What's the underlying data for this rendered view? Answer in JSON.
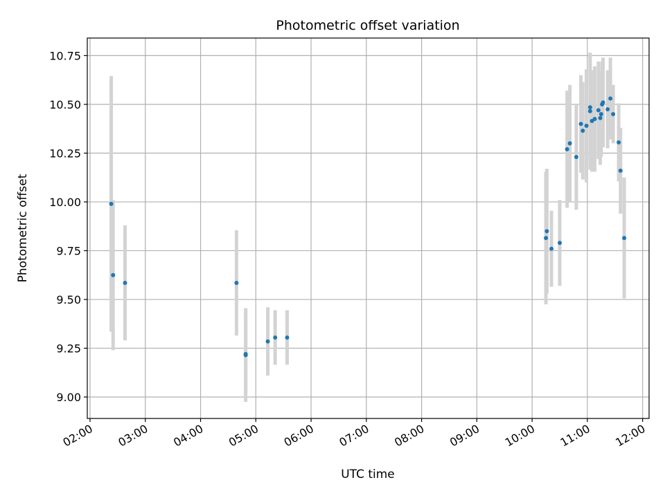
{
  "chart_data": {
    "type": "scatter",
    "title": "Photometric offset variation",
    "xlabel": "UTC time",
    "ylabel": "Photometric offset",
    "x_tick_labels": [
      "02:00",
      "03:00",
      "04:00",
      "05:00",
      "06:00",
      "07:00",
      "08:00",
      "09:00",
      "10:00",
      "11:00",
      "12:00"
    ],
    "y_tick_labels": [
      "9.00",
      "9.25",
      "9.50",
      "9.75",
      "10.00",
      "10.25",
      "10.50",
      "10.75"
    ],
    "xlim": [
      "01:57",
      "12:07"
    ],
    "ylim": [
      8.89,
      10.84
    ],
    "grid": true,
    "marker_color": "#1f77b4",
    "errorbar_color": "#d3d3d3",
    "series": [
      {
        "points": [
          {
            "x": "02:23",
            "y": 9.99,
            "err": 0.655
          },
          {
            "x": "02:25",
            "y": 9.625,
            "err": 0.385
          },
          {
            "x": "02:38",
            "y": 9.585,
            "err": 0.295
          },
          {
            "x": "04:39",
            "y": 9.585,
            "err": 0.27
          },
          {
            "x": "04:49",
            "y": 9.215,
            "err": 0.24
          },
          {
            "x": "04:49",
            "y": 9.22,
            "err": 0.2
          },
          {
            "x": "05:13",
            "y": 9.285,
            "err": 0.175
          },
          {
            "x": "05:21",
            "y": 9.305,
            "err": 0.14
          },
          {
            "x": "05:34",
            "y": 9.305,
            "err": 0.14
          },
          {
            "x": "10:15",
            "y": 9.815,
            "err": 0.34
          },
          {
            "x": "10:16",
            "y": 9.85,
            "err": 0.32
          },
          {
            "x": "10:21",
            "y": 9.76,
            "err": 0.195
          },
          {
            "x": "10:30",
            "y": 9.79,
            "err": 0.22
          },
          {
            "x": "10:38",
            "y": 10.27,
            "err": 0.3
          },
          {
            "x": "10:41",
            "y": 10.3,
            "err": 0.3
          },
          {
            "x": "10:48",
            "y": 10.23,
            "err": 0.27
          },
          {
            "x": "10:53",
            "y": 10.4,
            "err": 0.25
          },
          {
            "x": "10:55",
            "y": 10.365,
            "err": 0.25
          },
          {
            "x": "10:59",
            "y": 10.39,
            "err": 0.29
          },
          {
            "x": "11:03",
            "y": 10.465,
            "err": 0.3
          },
          {
            "x": "11:03",
            "y": 10.485,
            "err": 0.27
          },
          {
            "x": "11:05",
            "y": 10.415,
            "err": 0.26
          },
          {
            "x": "11:08",
            "y": 10.425,
            "err": 0.27
          },
          {
            "x": "11:12",
            "y": 10.47,
            "err": 0.25
          },
          {
            "x": "11:14",
            "y": 10.43,
            "err": 0.24
          },
          {
            "x": "11:15",
            "y": 10.45,
            "err": 0.22
          },
          {
            "x": "11:16",
            "y": 10.5,
            "err": 0.22
          },
          {
            "x": "11:17",
            "y": 10.51,
            "err": 0.23
          },
          {
            "x": "11:22",
            "y": 10.475,
            "err": 0.2
          },
          {
            "x": "11:25",
            "y": 10.53,
            "err": 0.21
          },
          {
            "x": "11:28",
            "y": 10.45,
            "err": 0.15
          },
          {
            "x": "11:34",
            "y": 10.305,
            "err": 0.2
          },
          {
            "x": "11:36",
            "y": 10.16,
            "err": 0.22
          },
          {
            "x": "11:40",
            "y": 9.815,
            "err": 0.31
          }
        ]
      }
    ]
  }
}
